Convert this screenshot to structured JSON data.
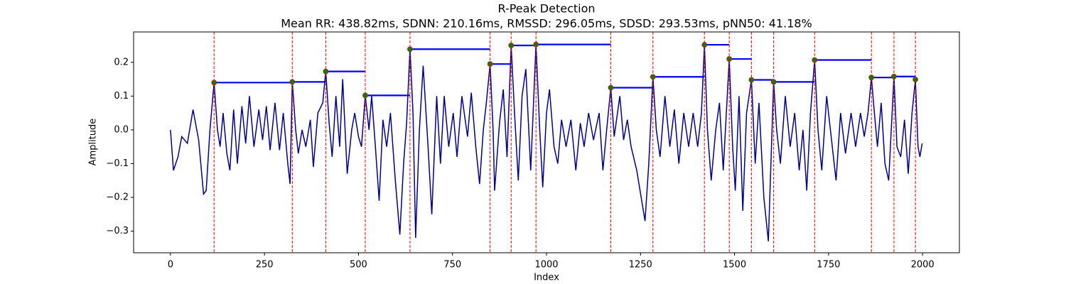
{
  "chart_data": {
    "type": "line",
    "title": "R-Peak Detection",
    "subtitle": "Mean RR: 438.82ms, SDNN: 210.16ms, RMSSD: 296.05ms, SDSD: 293.53ms, pNN50: 41.18%",
    "xlabel": "Index",
    "ylabel": "Amplitude",
    "xlim": [
      -98,
      2098
    ],
    "ylim": [
      -0.364,
      0.29
    ],
    "xticks": [
      0,
      250,
      500,
      750,
      1000,
      1250,
      1500,
      1750,
      2000
    ],
    "yticks": [
      {
        "value": -0.3,
        "label": "−0.3"
      },
      {
        "value": -0.2,
        "label": "−0.2"
      },
      {
        "value": -0.1,
        "label": "−0.1"
      },
      {
        "value": 0,
        "label": "0.0"
      },
      0.1,
      0.2
    ],
    "grid": false,
    "series": [
      {
        "color": "#00008b",
        "x": [
          0,
          8,
          20,
          30,
          45,
          60,
          75,
          88,
          95,
          105,
          116,
          125,
          132,
          140,
          150,
          158,
          168,
          178,
          190,
          200,
          210,
          222,
          235,
          245,
          255,
          265,
          278,
          290,
          300,
          312,
          318,
          324,
          333,
          340,
          350,
          360,
          372,
          380,
          392,
          405,
          413,
          422,
          430,
          440,
          450,
          458,
          470,
          482,
          490,
          500,
          508,
          518,
          528,
          535,
          545,
          555,
          565,
          575,
          585,
          598,
          610,
          620,
          628,
          637,
          645,
          652,
          662,
          672,
          685,
          695,
          708,
          718,
          728,
          740,
          752,
          762,
          775,
          790,
          800,
          812,
          822,
          832,
          840,
          850,
          858,
          862,
          875,
          885,
          895,
          906,
          915,
          925,
          935,
          945,
          958,
          972,
          982,
          990,
          1000,
          1008,
          1020,
          1030,
          1040,
          1052,
          1065,
          1078,
          1090,
          1100,
          1112,
          1125,
          1140,
          1150,
          1160,
          1171,
          1180,
          1195,
          1205,
          1215,
          1225,
          1240,
          1262,
          1272,
          1283,
          1292,
          1302,
          1315,
          1328,
          1340,
          1352,
          1365,
          1378,
          1390,
          1402,
          1412,
          1420,
          1428,
          1438,
          1450,
          1460,
          1470,
          1486,
          1495,
          1502,
          1512,
          1522,
          1532,
          1545,
          1555,
          1565,
          1578,
          1590,
          1604,
          1612,
          1622,
          1635,
          1648,
          1660,
          1672,
          1682,
          1692,
          1702,
          1713,
          1722,
          1732,
          1745,
          1758,
          1770,
          1782,
          1795,
          1810,
          1822,
          1835,
          1845,
          1855,
          1864,
          1872,
          1880,
          1890,
          1900,
          1910,
          1924,
          1932,
          1942,
          1952,
          1962,
          1972,
          1981,
          1988,
          1993,
          1999
        ],
        "values": [
          0.0,
          -0.12,
          -0.08,
          -0.02,
          -0.04,
          0.06,
          -0.03,
          -0.19,
          -0.18,
          0.0,
          0.14,
          0.0,
          -0.05,
          0.05,
          -0.07,
          -0.12,
          0.06,
          -0.1,
          0.07,
          -0.04,
          0.1,
          -0.05,
          0.06,
          -0.03,
          0.07,
          -0.06,
          0.08,
          -0.06,
          0.05,
          -0.1,
          -0.16,
          0.142,
          0.0,
          -0.07,
          0.0,
          -0.05,
          0.03,
          -0.11,
          0.05,
          0.08,
          0.173,
          0.02,
          -0.08,
          0.1,
          -0.05,
          0.15,
          -0.13,
          0.0,
          0.05,
          -0.02,
          -0.05,
          0.102,
          0.0,
          0.1,
          -0.05,
          -0.21,
          0.03,
          -0.05,
          0.05,
          -0.15,
          -0.31,
          -0.1,
          0.02,
          0.239,
          0.05,
          -0.32,
          0.0,
          0.19,
          -0.05,
          -0.25,
          0.1,
          -0.1,
          0.1,
          -0.05,
          0.05,
          -0.08,
          0.1,
          -0.02,
          0.11,
          -0.05,
          -0.16,
          0.0,
          0.08,
          0.195,
          0.0,
          -0.18,
          0.02,
          0.12,
          -0.08,
          0.25,
          0.05,
          -0.15,
          0.1,
          0.18,
          -0.12,
          0.253,
          0.0,
          -0.17,
          0.05,
          0.12,
          -0.05,
          -0.1,
          0.03,
          -0.05,
          0.03,
          -0.12,
          0.02,
          -0.05,
          0.05,
          -0.03,
          0.05,
          -0.12,
          0.0,
          0.125,
          -0.02,
          0.1,
          -0.03,
          0.03,
          -0.05,
          -0.12,
          -0.27,
          -0.1,
          0.157,
          0.0,
          -0.08,
          0.1,
          -0.05,
          0.06,
          -0.1,
          0.05,
          -0.05,
          0.05,
          -0.05,
          0.05,
          0.252,
          0.0,
          -0.15,
          0.0,
          0.08,
          -0.12,
          0.21,
          -0.05,
          -0.18,
          0.1,
          -0.24,
          0.05,
          0.148,
          -0.1,
          0.08,
          -0.2,
          -0.33,
          0.142,
          0.0,
          -0.1,
          0.1,
          -0.05,
          0.05,
          -0.12,
          0.0,
          -0.18,
          0.05,
          0.207,
          0.0,
          -0.12,
          0.1,
          -0.03,
          -0.15,
          0.05,
          -0.07,
          0.05,
          -0.05,
          0.05,
          -0.02,
          0.05,
          0.155,
          0.05,
          -0.05,
          0.08,
          -0.1,
          -0.15,
          0.158,
          -0.05,
          -0.08,
          0.03,
          -0.13,
          0.05,
          0.149,
          -0.05,
          -0.08,
          -0.04
        ]
      }
    ],
    "peaks": {
      "color": "green",
      "edgecolor": "red",
      "line_color": "red",
      "interval_color": "blue",
      "x": [
        116,
        324,
        413,
        518,
        637,
        850,
        906,
        972,
        1171,
        1283,
        1420,
        1486,
        1545,
        1604,
        1713,
        1864,
        1924,
        1981
      ],
      "values": [
        0.14,
        0.142,
        0.173,
        0.102,
        0.239,
        0.195,
        0.25,
        0.253,
        0.125,
        0.157,
        0.252,
        0.21,
        0.148,
        0.142,
        0.207,
        0.155,
        0.158,
        0.149
      ]
    }
  }
}
